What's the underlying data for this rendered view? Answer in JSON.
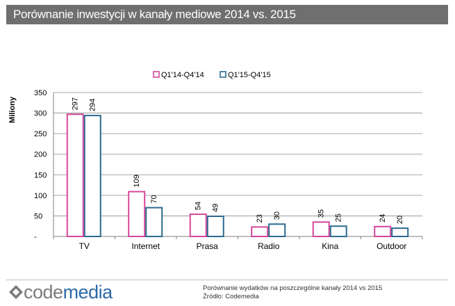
{
  "title": "Porównanie inwestycji w kanały mediowe 2014 vs. 2015",
  "logo": {
    "part1": "code",
    "part2": "media"
  },
  "footer": {
    "note": "Porównanie wydatków na poszczególne kanały 2014 vs 2015",
    "source": "Źródło: Codemedia"
  },
  "colors": {
    "series1": "#d5479a",
    "series2": "#2b6a8f",
    "title_bg": "#6f6f6f",
    "logo_blue": "#2c6aa8"
  },
  "chart_data": {
    "type": "bar",
    "title": "",
    "xlabel": "",
    "ylabel": "Miliony",
    "ylim": [
      0,
      350
    ],
    "yticks": [
      0,
      50,
      100,
      150,
      200,
      250,
      300,
      350
    ],
    "ytick_labels": [
      "-",
      "50",
      "100",
      "150",
      "200",
      "250",
      "300",
      "350"
    ],
    "grid": true,
    "legend": "top-center",
    "categories": [
      "TV",
      "Internet",
      "Prasa",
      "Radio",
      "Kina",
      "Outdoor"
    ],
    "series": [
      {
        "name": "Q1'14-Q4'14",
        "values": [
          297,
          109,
          54,
          23,
          35,
          24
        ]
      },
      {
        "name": "Q1'15-Q4'15",
        "values": [
          294,
          70,
          49,
          30,
          25,
          20
        ]
      }
    ]
  }
}
